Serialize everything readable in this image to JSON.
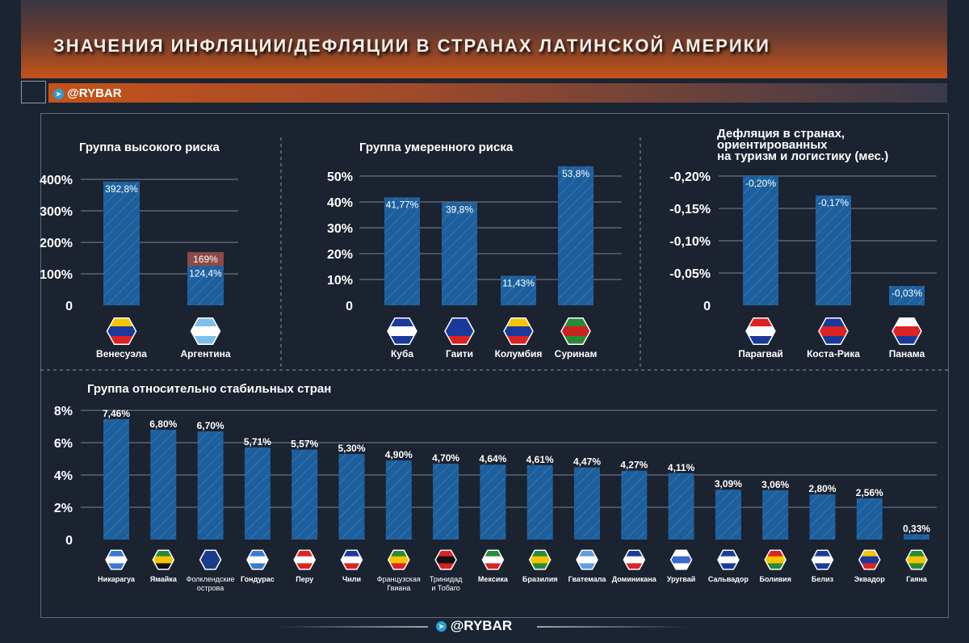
{
  "header": {
    "title": "ЗНАЧЕНИЯ ИНФЛЯЦИИ/ДЕФЛЯЦИИ В СТРАНАХ ЛАТИНСКОЙ АМЕРИКИ",
    "brand": "@RYBAR"
  },
  "footer": {
    "brand": "@RYBAR"
  },
  "colors": {
    "bar": "#1d5f9c",
    "bar_alt": "#8a4a4a",
    "grid": "#7a8796"
  },
  "chart_data": [
    {
      "type": "bar",
      "title": "Группа высокого риска",
      "ylim": [
        0,
        400
      ],
      "yticks": [
        "0",
        "100%",
        "200%",
        "300%",
        "400%"
      ],
      "categories": [
        "Венесуэла",
        "Аргентина"
      ],
      "values": [
        392.8,
        124.4
      ],
      "labels": [
        "392,8%",
        "124,4%"
      ],
      "extra": {
        "category": "Аргентина",
        "value": 169,
        "label": "169%"
      }
    },
    {
      "type": "bar",
      "title": "Группа умеренного риска",
      "ylim": [
        0,
        50
      ],
      "yticks": [
        "0",
        "10%",
        "20%",
        "30%",
        "40%",
        "50%"
      ],
      "categories": [
        "Куба",
        "Гаити",
        "Колумбия",
        "Суринам"
      ],
      "values": [
        41.77,
        39.8,
        11.43,
        53.8
      ],
      "labels": [
        "41,77%",
        "39,8%",
        "11,43%",
        "53,8%"
      ]
    },
    {
      "type": "bar",
      "title_lines": [
        "Дефляция в странах,",
        "ориентированных",
        "на туризм и логистику (мес.)"
      ],
      "ylim": [
        0,
        -0.2
      ],
      "yticks": [
        "0",
        "-0,05%",
        "-0,10%",
        "-0,15%",
        "-0,20%"
      ],
      "categories": [
        "Парагвай",
        "Коста-Рика",
        "Панама"
      ],
      "values": [
        -0.2,
        -0.17,
        -0.03
      ],
      "labels": [
        "-0,20%",
        "-0,17%",
        "-0,03%"
      ]
    },
    {
      "type": "bar",
      "title": "Группа относительно стабильных стран",
      "ylim": [
        0,
        8
      ],
      "yticks": [
        "0",
        "2%",
        "4%",
        "6%",
        "8%"
      ],
      "categories": [
        "Никарагуа",
        "Ямайка",
        "Фолклендские острова",
        "Гондурас",
        "Перу",
        "Чили",
        "Французская Гвиана",
        "Тринидад и Тобаго",
        "Мексика",
        "Бразилия",
        "Гватемала",
        "Доминикана",
        "Уругвай",
        "Сальвадор",
        "Боливия",
        "Белиз",
        "Эквадор",
        "Гаяна"
      ],
      "values": [
        7.46,
        6.8,
        6.7,
        5.71,
        5.57,
        5.3,
        4.9,
        4.7,
        4.64,
        4.61,
        4.47,
        4.27,
        4.11,
        3.09,
        3.06,
        2.8,
        2.56,
        0.33
      ],
      "labels": [
        "7,46%",
        "6,80%",
        "6,70%",
        "5,71%",
        "5,57%",
        "5,30%",
        "4,90%",
        "4,70%",
        "4,64%",
        "4,61%",
        "4,47%",
        "4,27%",
        "4,11%",
        "3,09%",
        "3,06%",
        "2,80%",
        "2,56%",
        "0,33%"
      ]
    }
  ],
  "flags": {
    "Венесуэла": [
      "#f6c400",
      "#1a3a9a",
      "#d22"
    ],
    "Аргентина": [
      "#7cc0ea",
      "#fff",
      "#7cc0ea"
    ],
    "Куба": [
      "#1a3a9a",
      "#fff",
      "#1a3a9a"
    ],
    "Гаити": [
      "#1a3a9a",
      "#1a3a9a",
      "#d22"
    ],
    "Колумбия": [
      "#f6c400",
      "#1a3a9a",
      "#d22"
    ],
    "Суринам": [
      "#2a8a3a",
      "#c22",
      "#2a8a3a"
    ],
    "Парагвай": [
      "#d22",
      "#fff",
      "#1a3a9a"
    ],
    "Коста-Рика": [
      "#1a3a9a",
      "#d22",
      "#1a3a9a"
    ],
    "Панама": [
      "#fff",
      "#d22",
      "#1a3a9a"
    ],
    "Никарагуа": [
      "#3a7ad0",
      "#fff",
      "#3a7ad0"
    ],
    "Ямайка": [
      "#2a8a3a",
      "#f6c400",
      "#111"
    ],
    "Фолклендские острова": [
      "#1a3a8a",
      "#1a3a8a",
      "#1a3a8a"
    ],
    "Гондурас": [
      "#3a7ad0",
      "#fff",
      "#3a7ad0"
    ],
    "Перу": [
      "#d22",
      "#fff",
      "#d22"
    ],
    "Чили": [
      "#1a3a9a",
      "#fff",
      "#d22"
    ],
    "Французская Гвиана": [
      "#2a8a3a",
      "#f6c400",
      "#d22"
    ],
    "Тринидад и Тобаго": [
      "#d22",
      "#111",
      "#d22"
    ],
    "Мексика": [
      "#2a8a3a",
      "#fff",
      "#d22"
    ],
    "Бразилия": [
      "#2a8a3a",
      "#f6c400",
      "#2a8a3a"
    ],
    "Гватемала": [
      "#5aa0e0",
      "#fff",
      "#5aa0e0"
    ],
    "Доминикана": [
      "#1a3a9a",
      "#fff",
      "#d22"
    ],
    "Уругвай": [
      "#fff",
      "#3a6ad0",
      "#fff"
    ],
    "Сальвадор": [
      "#1a3a9a",
      "#fff",
      "#1a3a9a"
    ],
    "Боливия": [
      "#d22",
      "#f6c400",
      "#2a8a3a"
    ],
    "Белиз": [
      "#1a3a9a",
      "#fff",
      "#1a3a9a"
    ],
    "Эквадор": [
      "#f6c400",
      "#1a3a9a",
      "#d22"
    ],
    "Гаяна": [
      "#2a8a3a",
      "#f6c400",
      "#2a8a3a"
    ]
  }
}
